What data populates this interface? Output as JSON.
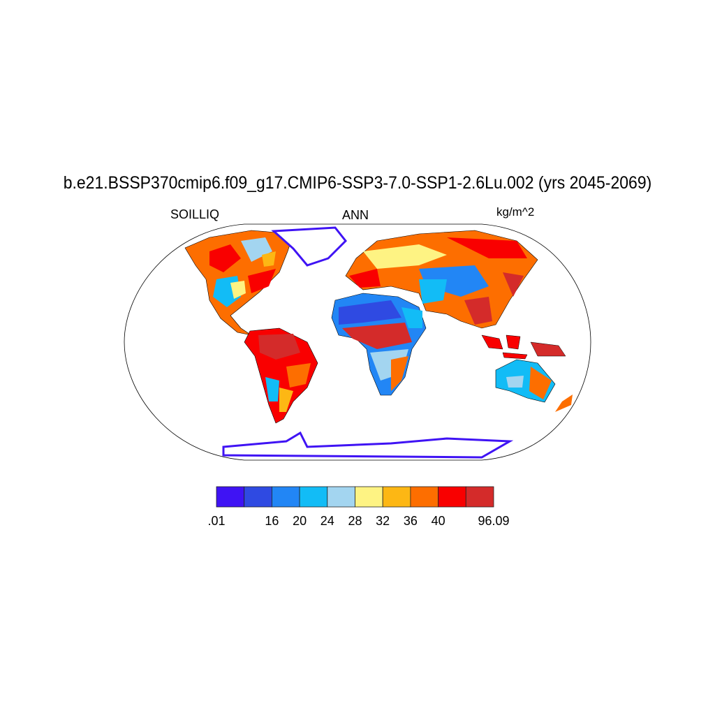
{
  "title": "b.e21.BSSP370cmip6.f09_g17.CMIP6-SSP3-7.0-SSP1-2.6Lu.002 (yrs 2045-2069)",
  "left_string": "SOILLIQ",
  "center_string": "ANN",
  "right_string": "kg/m^2",
  "map": {
    "projection": "Robinson",
    "field": "SOILLIQ",
    "land_only": true
  },
  "colorbar": {
    "orientation": "horizontal",
    "colors": [
      "#3f13f4",
      "#2f4ae2",
      "#2286f5",
      "#12bcf6",
      "#a3d5f0",
      "#fef383",
      "#fdb714",
      "#fd6e00",
      "#f90000",
      "#d42b2a"
    ],
    "labels": [
      ".01",
      "",
      "16",
      "20",
      "24",
      "28",
      "32",
      "36",
      "40",
      "",
      "96.09"
    ]
  }
}
